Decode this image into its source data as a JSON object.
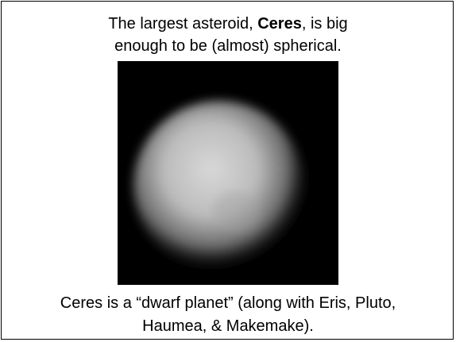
{
  "title": {
    "line1": {
      "before": "The largest asteroid, ",
      "bold": "Ceres",
      "after": ", is big"
    },
    "line2": "enough to be (almost) spherical."
  },
  "caption": {
    "line1": "Ceres is a “dwarf planet” (along with Eris, Pluto,",
    "line2": "Haumea, & Makemake)."
  }
}
